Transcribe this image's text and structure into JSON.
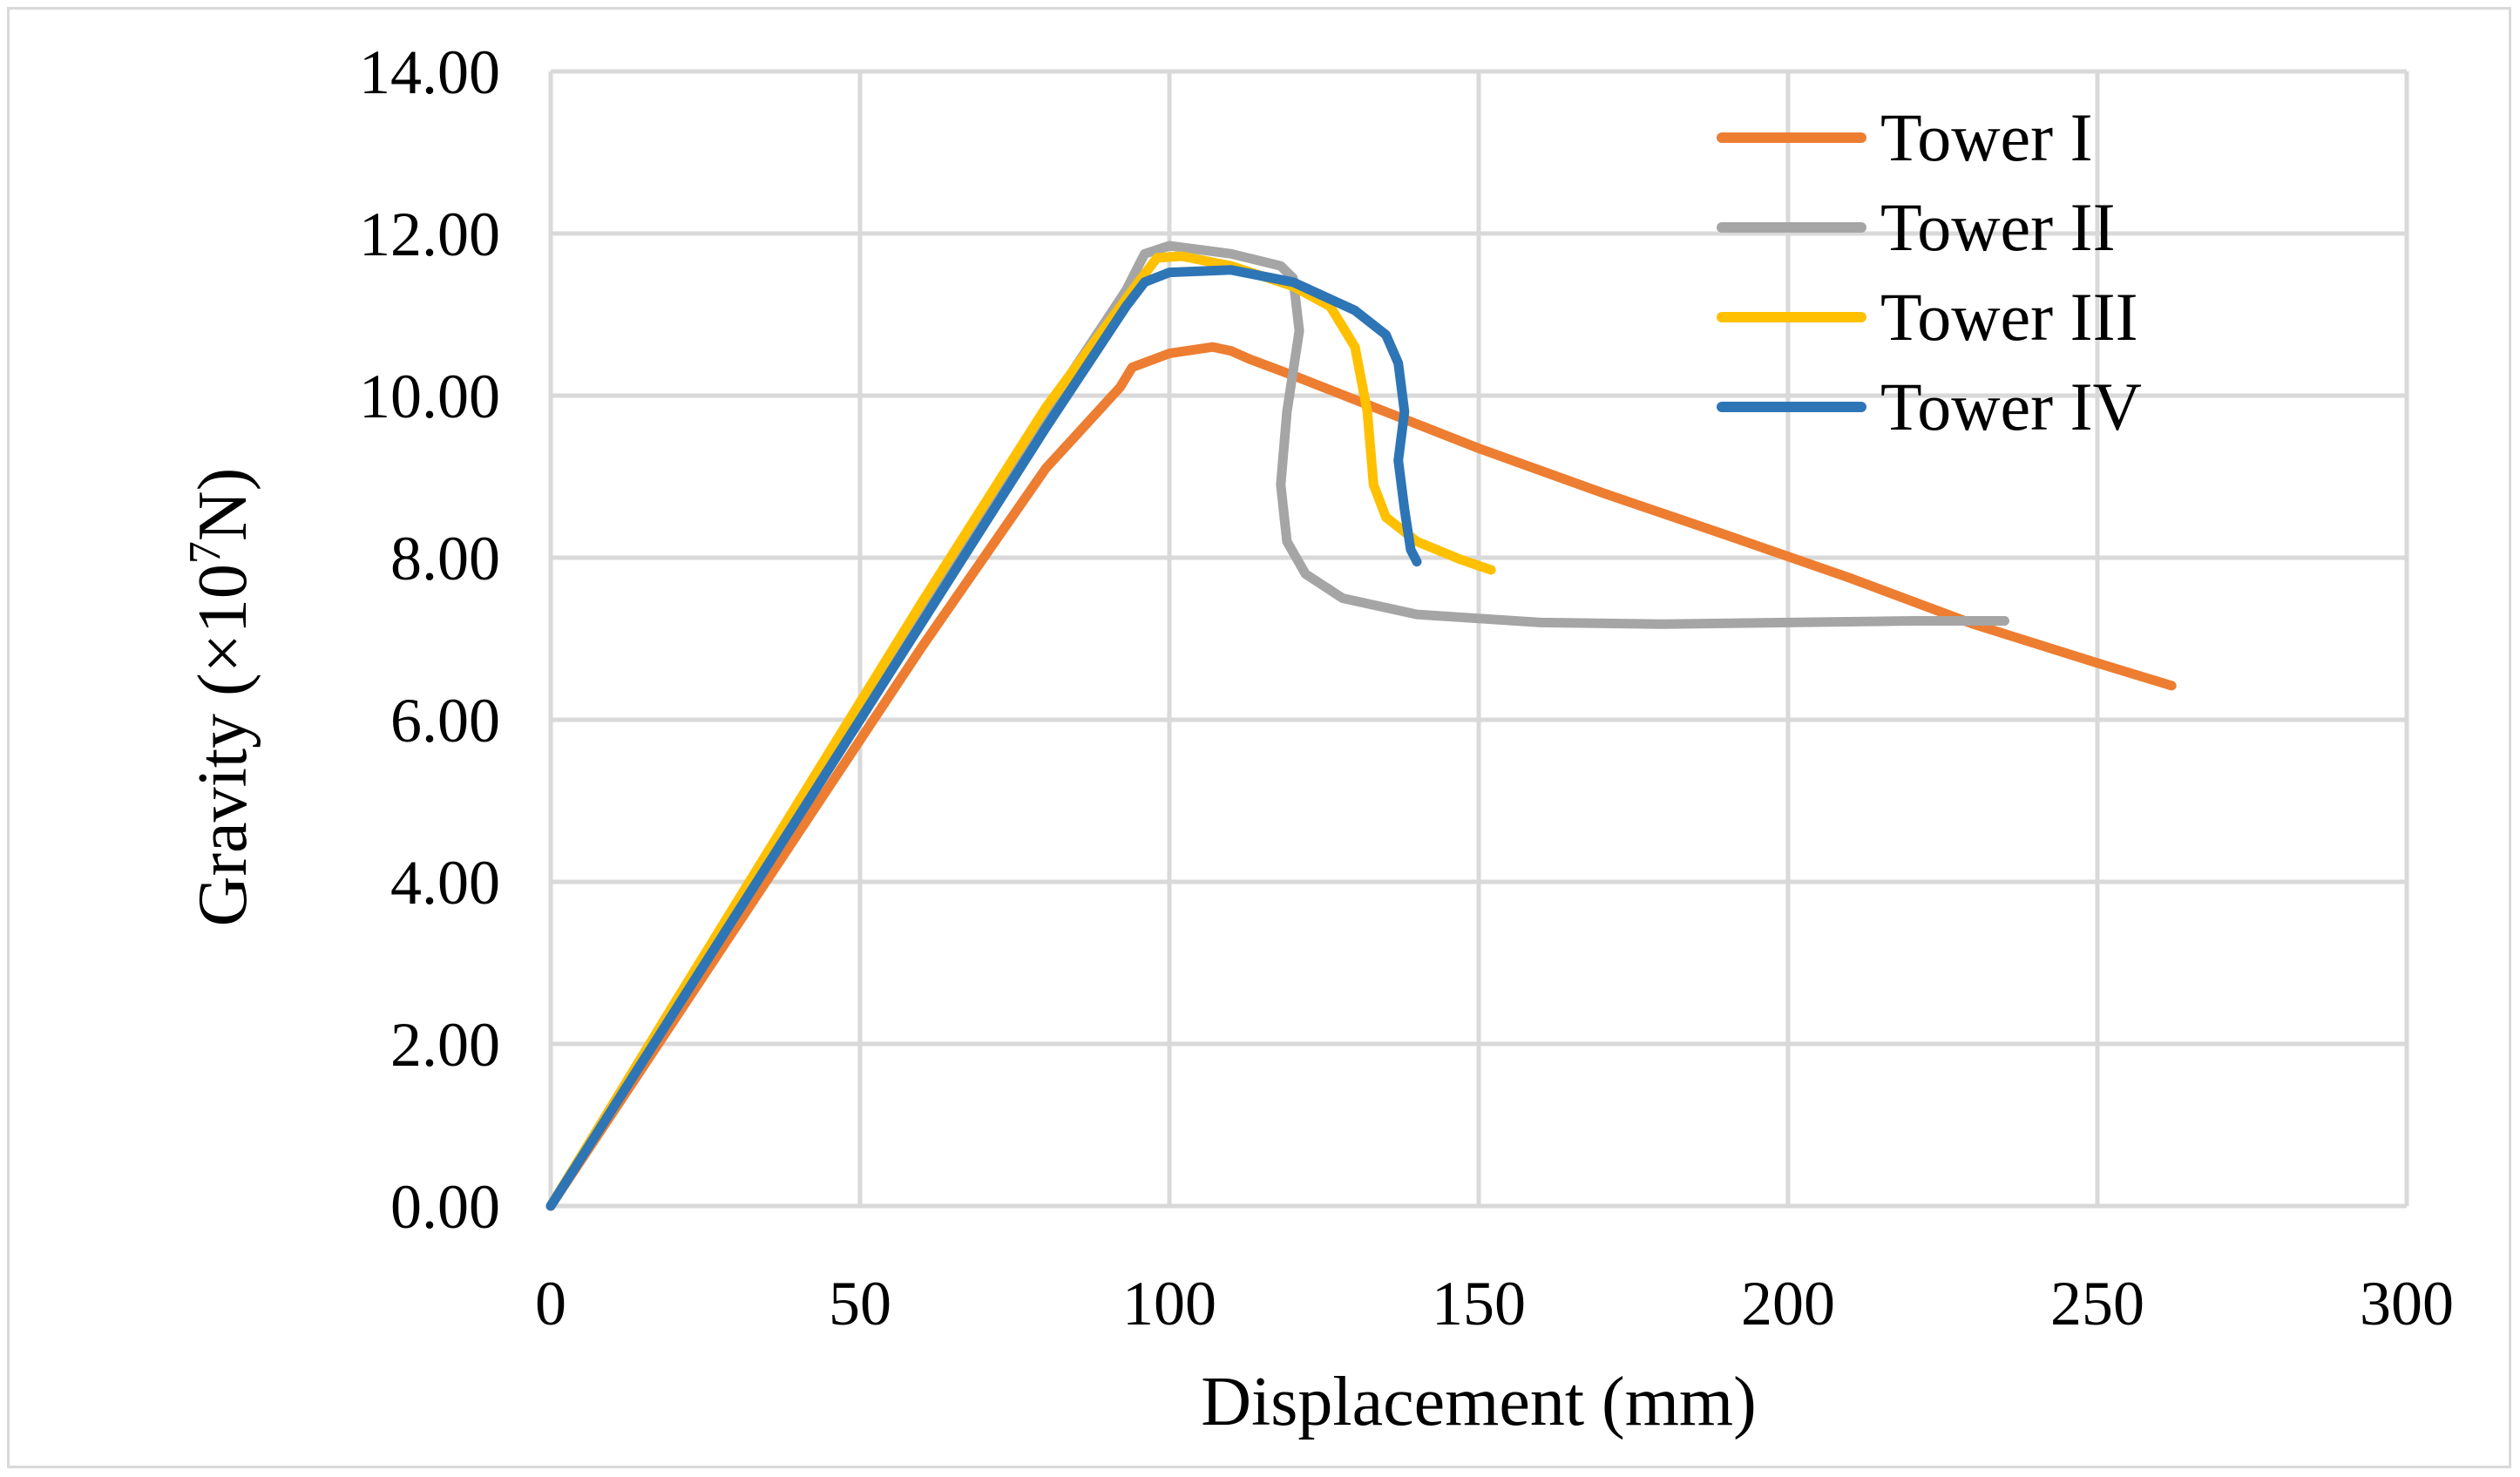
{
  "chart_data": {
    "type": "line",
    "title": "",
    "xlabel": "Displacement (mm)",
    "ylabel_main": "Gravity (×10",
    "ylabel_sup": "7",
    "ylabel_tail": "N)",
    "xlim": [
      0,
      300
    ],
    "ylim": [
      0,
      14
    ],
    "x_ticks": [
      0,
      50,
      100,
      150,
      200,
      250,
      300
    ],
    "x_tick_labels": [
      "0",
      "50",
      "100",
      "150",
      "200",
      "250",
      "300"
    ],
    "y_ticks": [
      0,
      2,
      4,
      6,
      8,
      10,
      12,
      14
    ],
    "y_tick_labels": [
      "0.00",
      "2.00",
      "4.00",
      "6.00",
      "8.00",
      "10.00",
      "12.00",
      "14.00"
    ],
    "grid": true,
    "legend_position": "top-right",
    "series": [
      {
        "name": "Tower I",
        "color": "#ed7d31",
        "points": [
          [
            0,
            0
          ],
          [
            20,
            2.3
          ],
          [
            40,
            4.6
          ],
          [
            60,
            6.9
          ],
          [
            80,
            9.1
          ],
          [
            92,
            10.1
          ],
          [
            94,
            10.35
          ],
          [
            100,
            10.52
          ],
          [
            107,
            10.6
          ],
          [
            110,
            10.55
          ],
          [
            113,
            10.45
          ],
          [
            120,
            10.25
          ],
          [
            130,
            9.95
          ],
          [
            150,
            9.35
          ],
          [
            170,
            8.8
          ],
          [
            190,
            8.28
          ],
          [
            210,
            7.75
          ],
          [
            230,
            7.18
          ],
          [
            250,
            6.7
          ],
          [
            262,
            6.42
          ]
        ]
      },
      {
        "name": "Tower II",
        "color": "#a5a5a5",
        "points": [
          [
            0,
            0
          ],
          [
            20,
            2.5
          ],
          [
            40,
            4.95
          ],
          [
            60,
            7.4
          ],
          [
            80,
            9.8
          ],
          [
            93,
            11.3
          ],
          [
            96,
            11.75
          ],
          [
            100,
            11.85
          ],
          [
            110,
            11.75
          ],
          [
            118,
            11.6
          ],
          [
            120,
            11.45
          ],
          [
            121,
            10.8
          ],
          [
            119,
            9.8
          ],
          [
            118,
            8.9
          ],
          [
            119,
            8.2
          ],
          [
            122,
            7.8
          ],
          [
            128,
            7.5
          ],
          [
            140,
            7.3
          ],
          [
            160,
            7.2
          ],
          [
            180,
            7.18
          ],
          [
            200,
            7.2
          ],
          [
            220,
            7.22
          ],
          [
            235,
            7.22
          ]
        ]
      },
      {
        "name": "Tower III",
        "color": "#ffc000",
        "points": [
          [
            0,
            0
          ],
          [
            20,
            2.5
          ],
          [
            40,
            4.98
          ],
          [
            60,
            7.45
          ],
          [
            80,
            9.85
          ],
          [
            95,
            11.4
          ],
          [
            98,
            11.7
          ],
          [
            102,
            11.72
          ],
          [
            110,
            11.6
          ],
          [
            120,
            11.35
          ],
          [
            126,
            11.1
          ],
          [
            130,
            10.6
          ],
          [
            132,
            9.8
          ],
          [
            133,
            8.9
          ],
          [
            135,
            8.5
          ],
          [
            140,
            8.2
          ],
          [
            147,
            7.98
          ],
          [
            152,
            7.85
          ]
        ]
      },
      {
        "name": "Tower IV",
        "color": "#2e75b6",
        "points": [
          [
            0,
            0
          ],
          [
            20,
            2.4
          ],
          [
            40,
            4.8
          ],
          [
            60,
            7.2
          ],
          [
            80,
            9.6
          ],
          [
            93,
            11.1
          ],
          [
            96,
            11.4
          ],
          [
            100,
            11.52
          ],
          [
            110,
            11.55
          ],
          [
            120,
            11.4
          ],
          [
            130,
            11.05
          ],
          [
            135,
            10.75
          ],
          [
            137,
            10.4
          ],
          [
            138,
            9.8
          ],
          [
            137,
            9.2
          ],
          [
            138,
            8.6
          ],
          [
            139,
            8.1
          ],
          [
            140,
            7.95
          ]
        ]
      }
    ]
  }
}
